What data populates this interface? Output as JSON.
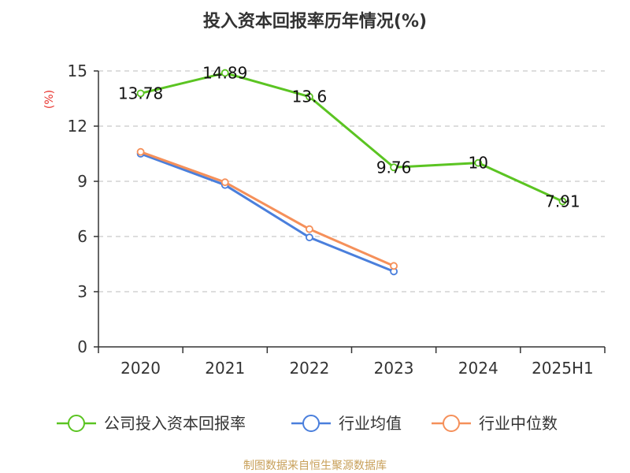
{
  "chart_data": {
    "type": "line",
    "title": "投入资本回报率历年情况(%)",
    "ylabel": "(%)",
    "categories": [
      "2020",
      "2021",
      "2022",
      "2023",
      "2024",
      "2025H1"
    ],
    "yticks": [
      "0",
      "3",
      "6",
      "9",
      "12",
      "15"
    ],
    "ylim": [
      0,
      15
    ],
    "grid": true,
    "legend_position": "bottom",
    "series": [
      {
        "name": "公司投入资本回报率",
        "color": "#5bc422",
        "values": [
          13.78,
          14.89,
          13.6,
          9.76,
          10,
          7.91
        ],
        "labels": [
          "13.78",
          "14.89",
          "13.6",
          "9.76",
          "10",
          "7.91"
        ]
      },
      {
        "name": "行业均值",
        "color": "#4a7fdc",
        "values": [
          10.5,
          8.8,
          5.95,
          4.1,
          null,
          null
        ]
      },
      {
        "name": "行业中位数",
        "color": "#f5905a",
        "values": [
          10.6,
          8.95,
          6.4,
          4.4,
          null,
          null
        ]
      }
    ]
  },
  "footer": {
    "source": "制图数据来自恒生聚源数据库"
  }
}
